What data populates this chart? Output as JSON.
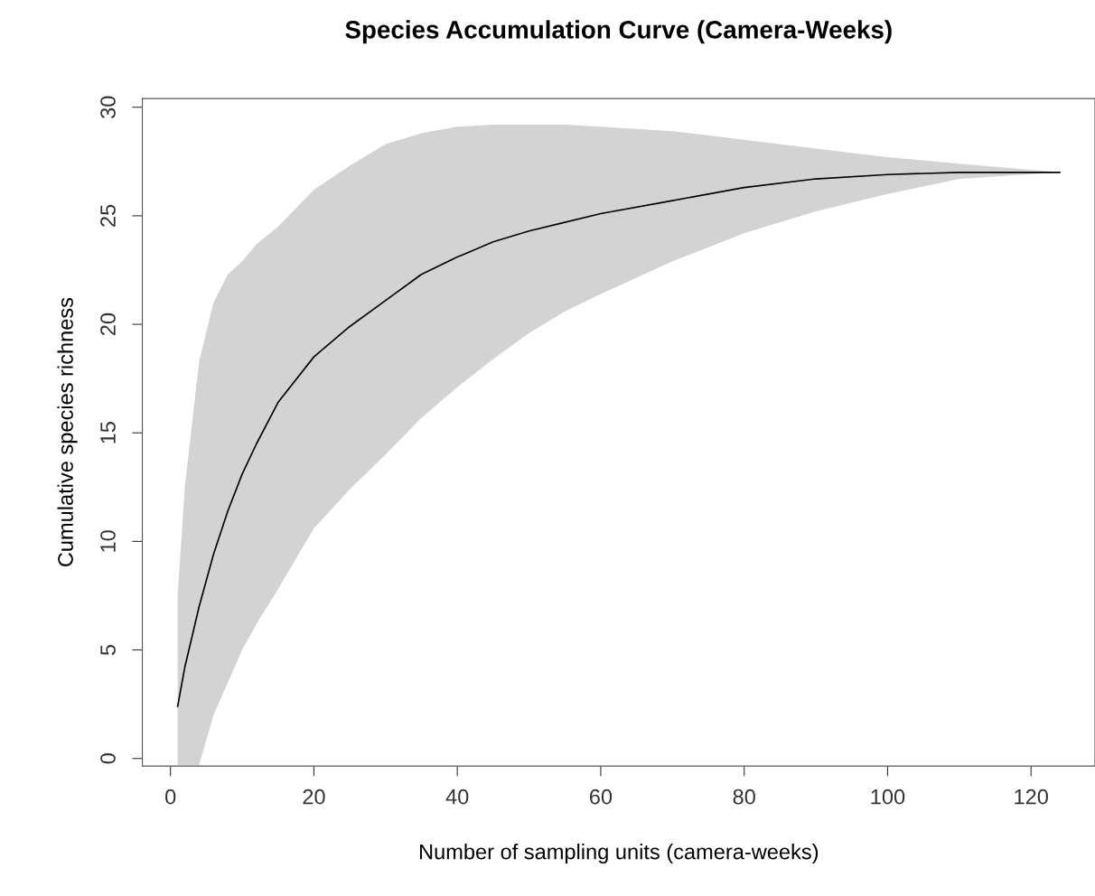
{
  "chart_data": {
    "type": "line",
    "title": "Species Accumulation Curve (Camera-Weeks)",
    "xlabel": "Number of sampling units (camera-weeks)",
    "ylabel": "Cumulative species richness",
    "x": [
      1,
      2,
      4,
      6,
      8,
      10,
      12,
      15,
      20,
      25,
      30,
      35,
      40,
      45,
      50,
      55,
      60,
      70,
      80,
      90,
      100,
      110,
      124
    ],
    "series": [
      {
        "color": "#000000",
        "values": [
          2.4,
          4.2,
          7.0,
          9.4,
          11.4,
          13.1,
          14.5,
          16.4,
          18.5,
          19.9,
          21.1,
          22.3,
          23.1,
          23.8,
          24.3,
          24.7,
          25.1,
          25.7,
          26.3,
          26.7,
          26.9,
          27.0,
          27.0
        ],
        "upper": [
          7.5,
          12.5,
          18.3,
          21.0,
          22.3,
          22.9,
          23.7,
          24.5,
          26.2,
          27.3,
          28.3,
          28.8,
          29.1,
          29.2,
          29.2,
          29.2,
          29.1,
          28.9,
          28.5,
          28.1,
          27.7,
          27.4,
          27.0
        ],
        "lower": [
          -0.3,
          -0.3,
          -0.3,
          2.0,
          3.5,
          5.0,
          6.2,
          7.8,
          10.6,
          12.4,
          14.0,
          15.7,
          17.1,
          18.4,
          19.6,
          20.6,
          21.4,
          22.9,
          24.2,
          25.2,
          26.0,
          26.7,
          27.0
        ]
      }
    ],
    "xlim": [
      -3.92,
      128.92
    ],
    "ylim": [
      -0.35,
      30.4
    ],
    "xticks": [
      0,
      20,
      40,
      60,
      80,
      100,
      120
    ],
    "yticks": [
      0,
      5,
      10,
      15,
      20,
      25,
      30
    ],
    "grid": false,
    "marker": "none",
    "line_style": "solid"
  }
}
